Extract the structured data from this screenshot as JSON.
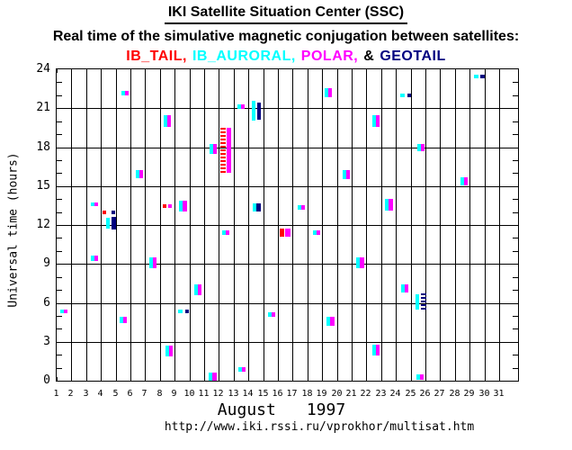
{
  "title": "IKI Satellite Situation Center (SSC)",
  "subtitle": "Real time of the simulative magnetic conjugation between satellites:",
  "legend_items": [
    {
      "text": "IB_TAIL,",
      "color": "#ff0000"
    },
    {
      "text": "IB_AURORAL,",
      "color": "#00ffff"
    },
    {
      "text": "POLAR,",
      "color": "#ff00ff"
    },
    {
      "text": "&",
      "color": "#000000"
    },
    {
      "text": "GEOTAIL",
      "color": "#000080"
    }
  ],
  "footer": {
    "month": "August",
    "year": "1997",
    "url": "http://www.iki.rssi.ru/vprokhor/multisat.htm"
  },
  "chart_data": {
    "type": "scatter",
    "title": "Real time of the simulative magnetic conjugation between satellites",
    "xlabel": "August 1997 (day of month)",
    "ylabel": "Universal time (hours)",
    "x_range": [
      1,
      31
    ],
    "y_range": [
      0,
      24
    ],
    "x_ticks": [
      1,
      2,
      3,
      4,
      5,
      6,
      7,
      8,
      9,
      10,
      11,
      12,
      13,
      14,
      15,
      16,
      17,
      18,
      19,
      20,
      21,
      22,
      23,
      24,
      25,
      26,
      27,
      28,
      29,
      30,
      31
    ],
    "y_ticks": [
      0,
      3,
      6,
      9,
      12,
      15,
      18,
      21,
      24
    ],
    "grid": "on",
    "satellite_colors": {
      "IB_TAIL": "#ff0000",
      "IB_AURORAL": "#00ffff",
      "POLAR": "#ff00ff",
      "GEOTAIL": "#000080"
    },
    "marks": [
      {
        "day": 5.39,
        "segments": [
          {
            "sat": "IB_AURORAL",
            "h1": 22.0,
            "h2": 22.35
          },
          {
            "sat": "POLAR",
            "h1": 22.0,
            "h2": 22.35
          }
        ]
      },
      {
        "day": 8.26,
        "segments": [
          {
            "sat": "IB_AURORAL",
            "h1": 19.55,
            "h2": 20.45
          },
          {
            "sat": "POLAR",
            "h1": 19.55,
            "h2": 20.45
          }
        ]
      },
      {
        "day": 11.37,
        "segments": [
          {
            "sat": "IB_AURORAL",
            "h1": 17.5,
            "h2": 18.25
          },
          {
            "sat": "POLAR",
            "h1": 17.5,
            "h2": 18.25
          }
        ]
      },
      {
        "day": 6.37,
        "segments": [
          {
            "sat": "IB_AURORAL",
            "h1": 15.6,
            "h2": 16.2
          },
          {
            "sat": "POLAR",
            "h1": 15.6,
            "h2": 16.2
          }
        ]
      },
      {
        "day": 19.17,
        "segments": [
          {
            "sat": "IB_AURORAL",
            "h1": 21.85,
            "h2": 22.55
          },
          {
            "sat": "POLAR",
            "h1": 21.85,
            "h2": 22.55
          }
        ]
      },
      {
        "day": 13.26,
        "segments": [
          {
            "sat": "IB_AURORAL",
            "h1": 20.95,
            "h2": 21.3
          },
          {
            "sat": "POLAR",
            "h1": 20.95,
            "h2": 21.3
          }
        ]
      },
      {
        "day": 14.23,
        "segments": [
          {
            "sat": "IB_AURORAL",
            "h1": 20.1,
            "h2": 21.6
          },
          {
            "sat": "GEOTAIL",
            "h1": 20.15,
            "h2": 21.45,
            "dx": 6
          }
        ]
      },
      {
        "day": 22.4,
        "segments": [
          {
            "sat": "IB_AURORAL",
            "h1": 19.55,
            "h2": 20.45
          },
          {
            "sat": "POLAR",
            "h1": 19.55,
            "h2": 20.45
          }
        ]
      },
      {
        "day": 12.1,
        "segments": [
          {
            "sat": "IB_TAIL",
            "h1": 16.05,
            "h2": 19.5,
            "style": "dotted",
            "w": 6
          },
          {
            "sat": "POLAR",
            "h1": 16.0,
            "h2": 19.5,
            "w": 5,
            "dx": 7
          }
        ]
      },
      {
        "day": 20.4,
        "segments": [
          {
            "sat": "IB_AURORAL",
            "h1": 15.5,
            "h2": 16.2
          },
          {
            "sat": "POLAR",
            "h1": 15.5,
            "h2": 16.2
          }
        ]
      },
      {
        "day": 29.27,
        "segments": [
          {
            "sat": "IB_AURORAL",
            "h1": 23.3,
            "h2": 23.6,
            "w": 5
          },
          {
            "sat": "GEOTAIL",
            "h1": 23.3,
            "h2": 23.6,
            "dx": 7,
            "w": 5
          }
        ]
      },
      {
        "day": 24.3,
        "segments": [
          {
            "sat": "IB_AURORAL",
            "h1": 21.85,
            "h2": 22.15,
            "w": 5
          },
          {
            "sat": "GEOTAIL",
            "h1": 21.85,
            "h2": 22.15,
            "dx": 8
          }
        ]
      },
      {
        "day": 25.45,
        "segments": [
          {
            "sat": "IB_AURORAL",
            "h1": 17.7,
            "h2": 18.25
          },
          {
            "sat": "POLAR",
            "h1": 17.7,
            "h2": 18.25
          }
        ]
      },
      {
        "day": 28.4,
        "segments": [
          {
            "sat": "IB_AURORAL",
            "h1": 15.1,
            "h2": 15.7
          },
          {
            "sat": "POLAR",
            "h1": 15.1,
            "h2": 15.7
          }
        ]
      },
      {
        "day": 3.32,
        "segments": [
          {
            "sat": "IB_AURORAL",
            "h1": 13.45,
            "h2": 13.75
          },
          {
            "sat": "POLAR",
            "h1": 13.45,
            "h2": 13.75
          }
        ]
      },
      {
        "day": 4.11,
        "segments": [
          {
            "sat": "IB_TAIL",
            "h1": 12.85,
            "h2": 13.1
          },
          {
            "sat": "GEOTAIL",
            "h1": 12.85,
            "h2": 13.1,
            "dx": 10
          }
        ]
      },
      {
        "day": 4.35,
        "segments": [
          {
            "sat": "IB_AURORAL",
            "h1": 11.7,
            "h2": 12.55
          },
          {
            "sat": "GEOTAIL",
            "h1": 11.65,
            "h2": 12.65,
            "dx": 6,
            "w": 5
          }
        ]
      },
      {
        "day": 8.2,
        "segments": [
          {
            "sat": "IB_TAIL",
            "h1": 13.3,
            "h2": 13.6
          },
          {
            "sat": "POLAR",
            "h1": 13.3,
            "h2": 13.6,
            "dx": 6
          }
        ]
      },
      {
        "day": 9.29,
        "segments": [
          {
            "sat": "IB_AURORAL",
            "h1": 13.1,
            "h2": 13.9
          },
          {
            "sat": "POLAR",
            "h1": 13.1,
            "h2": 13.9,
            "w": 5
          }
        ]
      },
      {
        "day": 3.32,
        "segments": [
          {
            "sat": "IB_AURORAL",
            "h1": 9.2,
            "h2": 9.65
          },
          {
            "sat": "POLAR",
            "h1": 9.2,
            "h2": 9.65
          }
        ]
      },
      {
        "day": 7.28,
        "segments": [
          {
            "sat": "IB_AURORAL",
            "h1": 8.7,
            "h2": 9.5
          },
          {
            "sat": "POLAR",
            "h1": 8.7,
            "h2": 9.5
          }
        ]
      },
      {
        "day": 10.33,
        "segments": [
          {
            "sat": "IB_AURORAL",
            "h1": 6.6,
            "h2": 7.4
          },
          {
            "sat": "POLAR",
            "h1": 6.6,
            "h2": 7.4
          }
        ]
      },
      {
        "day": 14.29,
        "segments": [
          {
            "sat": "IB_AURORAL",
            "h1": 13.0,
            "h2": 13.65
          },
          {
            "sat": "GEOTAIL",
            "h1": 13.0,
            "h2": 13.65,
            "w": 5
          }
        ]
      },
      {
        "day": 17.34,
        "segments": [
          {
            "sat": "IB_AURORAL",
            "h1": 13.2,
            "h2": 13.55
          },
          {
            "sat": "POLAR",
            "h1": 13.2,
            "h2": 13.55
          }
        ]
      },
      {
        "day": 12.22,
        "segments": [
          {
            "sat": "IB_AURORAL",
            "h1": 11.25,
            "h2": 11.6
          },
          {
            "sat": "POLAR",
            "h1": 11.25,
            "h2": 11.6
          }
        ]
      },
      {
        "day": 16.12,
        "segments": [
          {
            "sat": "IB_TAIL",
            "h1": 11.1,
            "h2": 11.7,
            "w": 5
          },
          {
            "sat": "POLAR",
            "h1": 11.1,
            "h2": 11.7,
            "dx": 6,
            "w": 6
          }
        ]
      },
      {
        "day": 18.38,
        "segments": [
          {
            "sat": "IB_AURORAL",
            "h1": 11.2,
            "h2": 11.55
          },
          {
            "sat": "POLAR",
            "h1": 11.2,
            "h2": 11.55
          }
        ]
      },
      {
        "day": 21.3,
        "segments": [
          {
            "sat": "IB_AURORAL",
            "h1": 8.7,
            "h2": 9.5
          },
          {
            "sat": "POLAR",
            "h1": 8.7,
            "h2": 9.5,
            "w": 5
          }
        ]
      },
      {
        "day": 23.26,
        "segments": [
          {
            "sat": "IB_AURORAL",
            "h1": 13.1,
            "h2": 14.0
          },
          {
            "sat": "POLAR",
            "h1": 13.1,
            "h2": 14.0,
            "w": 5
          }
        ]
      },
      {
        "day": 24.35,
        "segments": [
          {
            "sat": "IB_AURORAL",
            "h1": 6.8,
            "h2": 7.4
          },
          {
            "sat": "POLAR",
            "h1": 6.8,
            "h2": 7.4
          }
        ]
      },
      {
        "day": 25.33,
        "segments": [
          {
            "sat": "IB_AURORAL",
            "h1": 5.5,
            "h2": 6.65
          },
          {
            "sat": "GEOTAIL",
            "h1": 5.3,
            "h2": 6.7,
            "dx": 6,
            "w": 6,
            "style": "dotted"
          }
        ]
      },
      {
        "day": 1.24,
        "segments": [
          {
            "sat": "IB_AURORAL",
            "h1": 5.2,
            "h2": 5.5
          },
          {
            "sat": "POLAR",
            "h1": 5.2,
            "h2": 5.5
          }
        ]
      },
      {
        "day": 5.27,
        "segments": [
          {
            "sat": "IB_AURORAL",
            "h1": 4.4,
            "h2": 4.9
          },
          {
            "sat": "POLAR",
            "h1": 4.4,
            "h2": 4.9
          }
        ]
      },
      {
        "day": 9.23,
        "segments": [
          {
            "sat": "IB_AURORAL",
            "h1": 5.2,
            "h2": 5.5,
            "w": 5
          },
          {
            "sat": "GEOTAIL",
            "h1": 5.2,
            "h2": 5.5,
            "dx": 8
          }
        ]
      },
      {
        "day": 8.38,
        "segments": [
          {
            "sat": "IB_AURORAL",
            "h1": 1.9,
            "h2": 2.7
          },
          {
            "sat": "POLAR",
            "h1": 1.9,
            "h2": 2.7
          }
        ]
      },
      {
        "day": 11.3,
        "segments": [
          {
            "sat": "IB_AURORAL",
            "h1": 0.0,
            "h2": 0.6
          },
          {
            "sat": "POLAR",
            "h1": 0.0,
            "h2": 0.6,
            "w": 5
          }
        ]
      },
      {
        "day": 15.33,
        "segments": [
          {
            "sat": "IB_AURORAL",
            "h1": 4.9,
            "h2": 5.25
          },
          {
            "sat": "POLAR",
            "h1": 4.9,
            "h2": 5.25
          }
        ]
      },
      {
        "day": 19.29,
        "segments": [
          {
            "sat": "IB_AURORAL",
            "h1": 4.2,
            "h2": 4.9
          },
          {
            "sat": "POLAR",
            "h1": 4.2,
            "h2": 4.9,
            "w": 5
          }
        ]
      },
      {
        "day": 22.4,
        "segments": [
          {
            "sat": "IB_AURORAL",
            "h1": 2.0,
            "h2": 2.8
          },
          {
            "sat": "POLAR",
            "h1": 2.0,
            "h2": 2.8
          }
        ]
      },
      {
        "day": 13.32,
        "segments": [
          {
            "sat": "IB_AURORAL",
            "h1": 0.7,
            "h2": 1.05
          },
          {
            "sat": "POLAR",
            "h1": 0.7,
            "h2": 1.05
          }
        ]
      },
      {
        "day": 25.39,
        "segments": [
          {
            "sat": "IB_AURORAL",
            "h1": 0.1,
            "h2": 0.5
          },
          {
            "sat": "POLAR",
            "h1": 0.1,
            "h2": 0.5
          }
        ]
      }
    ]
  }
}
